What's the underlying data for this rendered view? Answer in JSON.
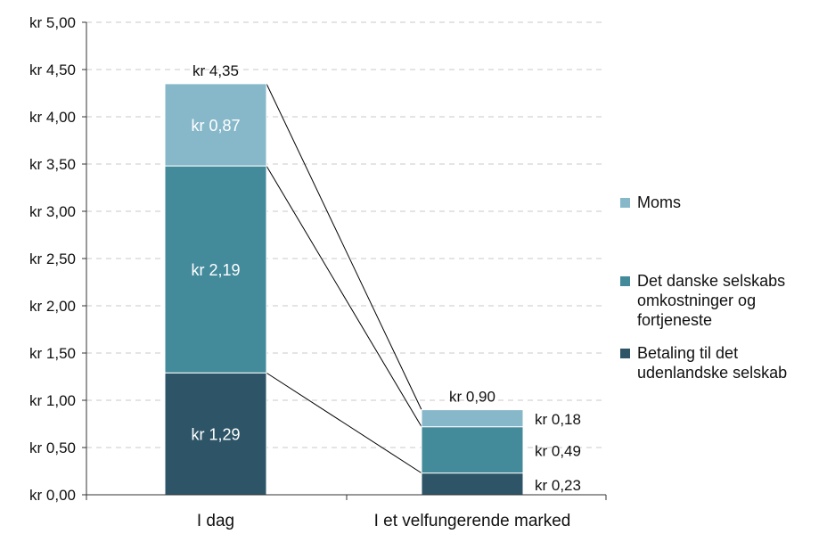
{
  "chart_data": {
    "type": "bar",
    "stacked": true,
    "categories": [
      "I dag",
      "I et velfungerende marked"
    ],
    "series": [
      {
        "name": "Betaling til det udenlandske selskab",
        "values": [
          1.29,
          0.23
        ],
        "labels": [
          "kr 1,29",
          "kr 0,23"
        ],
        "color": "#2d5567"
      },
      {
        "name": "Det danske selskabs omkostninger og fortjeneste",
        "values": [
          2.19,
          0.49
        ],
        "labels": [
          "kr 2,19",
          "kr 0,49"
        ],
        "color": "#438a9b"
      },
      {
        "name": "Moms",
        "values": [
          0.87,
          0.18
        ],
        "labels": [
          "kr 0,87",
          "kr 0,18"
        ],
        "color": "#87b8c9"
      }
    ],
    "totals": [
      4.35,
      0.9
    ],
    "total_labels": [
      "kr 4,35",
      "kr 0,90"
    ],
    "ylim": [
      0,
      5
    ],
    "yticks": [
      0,
      0.5,
      1,
      1.5,
      2,
      2.5,
      3,
      3.5,
      4,
      4.5,
      5
    ],
    "ytick_labels": [
      "kr 0,00",
      "kr 0,50",
      "kr 1,00",
      "kr 1,50",
      "kr 2,00",
      "kr 2,50",
      "kr 3,00",
      "kr 3,50",
      "kr 4,00",
      "kr 4,50",
      "kr 5,00"
    ],
    "grid": true,
    "legend_position": "right",
    "legend_order": [
      2,
      1,
      0
    ]
  }
}
